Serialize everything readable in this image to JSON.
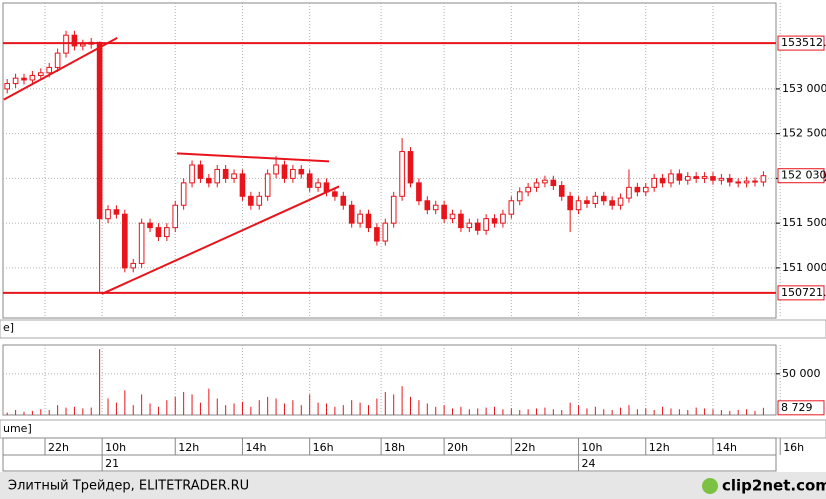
{
  "chart_data": {
    "type": "candlestick",
    "color": "#e8141b",
    "grid": true,
    "xlim": [
      -0.5,
      91.5
    ],
    "ylim": [
      150440,
      153960
    ],
    "yticks": [
      {
        "value": 151000,
        "label": "151 000"
      },
      {
        "value": 151500,
        "label": "151 500"
      },
      {
        "value": 152000,
        "label": "152 000"
      },
      {
        "value": 152500,
        "label": "152 500"
      },
      {
        "value": 153000,
        "label": "153 000"
      }
    ],
    "xticks": [
      {
        "value": 4.5,
        "label": "22h"
      },
      {
        "value": 11.3,
        "label": "10h"
      },
      {
        "value": 20,
        "label": "12h"
      },
      {
        "value": 28,
        "label": "14h"
      },
      {
        "value": 36,
        "label": "16h"
      },
      {
        "value": 44.5,
        "label": "18h"
      },
      {
        "value": 52,
        "label": "20h"
      },
      {
        "value": 60,
        "label": "22h"
      },
      {
        "value": 68,
        "label": "10h"
      },
      {
        "value": 76,
        "label": "12h"
      },
      {
        "value": 84,
        "label": "14h"
      },
      {
        "value": 92,
        "label": "16h"
      }
    ],
    "date_labels": [
      {
        "value": 11.3,
        "label": "21"
      },
      {
        "value": 68,
        "label": "24"
      }
    ],
    "levels": [
      {
        "value": 153512,
        "label": "153512."
      },
      {
        "value": 150721,
        "label": "150721."
      }
    ],
    "last_label": "152 030",
    "panel_label": "e]",
    "trend_lines": [
      [
        [
          -0.4,
          152880
        ],
        [
          13.1,
          153570
        ]
      ],
      [
        [
          20.2,
          152280
        ],
        [
          38.3,
          152190
        ]
      ],
      [
        [
          11.3,
          150710
        ],
        [
          39.5,
          151910
        ]
      ]
    ],
    "candles": [
      [
        153000,
        153110,
        152950,
        153060
      ],
      [
        153060,
        153170,
        153010,
        153120
      ],
      [
        153120,
        153170,
        153050,
        153100
      ],
      [
        153100,
        153200,
        153050,
        153150
      ],
      [
        153150,
        153230,
        153100,
        153180
      ],
      [
        153180,
        153290,
        153130,
        153240
      ],
      [
        153240,
        153450,
        153190,
        153400
      ],
      [
        153400,
        153650,
        153350,
        153600
      ],
      [
        153600,
        153650,
        153430,
        153480
      ],
      [
        153480,
        153550,
        153430,
        153500
      ],
      [
        153500,
        153570,
        153450,
        153520
      ],
      [
        153520,
        153530,
        150721,
        151550
      ],
      [
        151550,
        151700,
        151500,
        151650
      ],
      [
        151650,
        151700,
        151550,
        151600
      ],
      [
        151600,
        151650,
        150950,
        151000
      ],
      [
        151000,
        151100,
        150950,
        151050
      ],
      [
        151050,
        151550,
        151000,
        151500
      ],
      [
        151500,
        151550,
        151400,
        151450
      ],
      [
        151450,
        151500,
        151300,
        151350
      ],
      [
        151350,
        151500,
        151300,
        151450
      ],
      [
        151450,
        151750,
        151400,
        151700
      ],
      [
        151700,
        152000,
        151650,
        151950
      ],
      [
        151950,
        152200,
        151900,
        152150
      ],
      [
        152150,
        152200,
        151950,
        152000
      ],
      [
        152000,
        152050,
        151900,
        151950
      ],
      [
        151950,
        152150,
        151900,
        152100
      ],
      [
        152100,
        152150,
        151950,
        152000
      ],
      [
        152000,
        152100,
        151950,
        152050
      ],
      [
        152050,
        152100,
        151750,
        151800
      ],
      [
        151800,
        151850,
        151650,
        151700
      ],
      [
        151700,
        151850,
        151650,
        151800
      ],
      [
        151800,
        152100,
        151750,
        152050
      ],
      [
        152050,
        152250,
        152000,
        152150
      ],
      [
        152150,
        152200,
        151950,
        152000
      ],
      [
        152000,
        152150,
        151950,
        152100
      ],
      [
        152100,
        152150,
        152000,
        152050
      ],
      [
        152050,
        152100,
        151850,
        151900
      ],
      [
        151900,
        152000,
        151850,
        151950
      ],
      [
        151950,
        152000,
        151800,
        151850
      ],
      [
        151850,
        151900,
        151750,
        151800
      ],
      [
        151800,
        151850,
        151650,
        151700
      ],
      [
        151700,
        151750,
        151450,
        151500
      ],
      [
        151500,
        151650,
        151450,
        151600
      ],
      [
        151600,
        151650,
        151400,
        151450
      ],
      [
        151450,
        151500,
        151250,
        151300
      ],
      [
        151300,
        151550,
        151250,
        151500
      ],
      [
        151500,
        151850,
        151450,
        151800
      ],
      [
        151800,
        152450,
        151750,
        152300
      ],
      [
        152300,
        152350,
        151900,
        151950
      ],
      [
        151950,
        152000,
        151700,
        151750
      ],
      [
        151750,
        151800,
        151600,
        151650
      ],
      [
        151650,
        151750,
        151600,
        151700
      ],
      [
        151700,
        151750,
        151500,
        151550
      ],
      [
        151550,
        151650,
        151500,
        151600
      ],
      [
        151600,
        151650,
        151400,
        151450
      ],
      [
        151450,
        151550,
        151400,
        151500
      ],
      [
        151500,
        151550,
        151370,
        151420
      ],
      [
        151420,
        151600,
        151370,
        151550
      ],
      [
        151550,
        151600,
        151450,
        151500
      ],
      [
        151500,
        151650,
        151450,
        151600
      ],
      [
        151600,
        151800,
        151550,
        151750
      ],
      [
        151750,
        151900,
        151700,
        151850
      ],
      [
        151850,
        151950,
        151800,
        151900
      ],
      [
        151900,
        152000,
        151850,
        151950
      ],
      [
        151950,
        152030,
        151900,
        151980
      ],
      [
        151980,
        152030,
        151870,
        151920
      ],
      [
        151920,
        151970,
        151750,
        151800
      ],
      [
        151800,
        151850,
        151400,
        151650
      ],
      [
        151650,
        151800,
        151600,
        151750
      ],
      [
        151750,
        151800,
        151670,
        151720
      ],
      [
        151720,
        151850,
        151670,
        151800
      ],
      [
        151800,
        151850,
        151700,
        151750
      ],
      [
        151750,
        151800,
        151650,
        151700
      ],
      [
        151700,
        151830,
        151650,
        151780
      ],
      [
        151780,
        152100,
        151730,
        151900
      ],
      [
        151900,
        151950,
        151800,
        151850
      ],
      [
        151850,
        151950,
        151800,
        151900
      ],
      [
        151900,
        152050,
        151850,
        152000
      ],
      [
        152000,
        152050,
        151900,
        151950
      ],
      [
        151950,
        152100,
        151900,
        152050
      ],
      [
        152050,
        152100,
        151930,
        151980
      ],
      [
        151980,
        152070,
        151930,
        152020
      ],
      [
        152020,
        152070,
        151950,
        152000
      ],
      [
        152000,
        152070,
        151950,
        152020
      ],
      [
        152020,
        152070,
        151930,
        151980
      ],
      [
        151980,
        152050,
        151930,
        152000
      ],
      [
        152000,
        152050,
        151910,
        151960
      ],
      [
        151960,
        152000,
        151900,
        151950
      ],
      [
        151950,
        152020,
        151900,
        151970
      ],
      [
        151970,
        152010,
        151910,
        151960
      ],
      [
        151960,
        152080,
        151910,
        152030
      ]
    ],
    "volume": {
      "label": "ume]",
      "ylim": [
        0,
        85000
      ],
      "yticks": [
        {
          "value": 50000,
          "label": "50 000"
        }
      ],
      "last_label": "8 729",
      "values": [
        3000,
        6000,
        4000,
        5000,
        7000,
        6000,
        12000,
        9000,
        10000,
        8000,
        9000,
        80000,
        20000,
        15000,
        30000,
        12000,
        25000,
        14000,
        10000,
        18000,
        22000,
        28000,
        25000,
        15000,
        32000,
        20000,
        12000,
        14000,
        16000,
        10000,
        18000,
        22000,
        20000,
        14000,
        18000,
        12000,
        25000,
        15000,
        14000,
        10000,
        12000,
        18000,
        15000,
        12000,
        20000,
        28000,
        25000,
        35000,
        22000,
        18000,
        14000,
        10000,
        12000,
        8000,
        10000,
        7000,
        8000,
        9000,
        10000,
        7000,
        8000,
        6000,
        7000,
        8000,
        9000,
        7000,
        6000,
        15000,
        12000,
        8000,
        10000,
        7000,
        6000,
        9000,
        12000,
        7000,
        8000,
        6000,
        10000,
        8000,
        7000,
        6000,
        9000,
        8000,
        7000,
        6000,
        5000,
        6000,
        7000,
        5000,
        8729
      ]
    }
  },
  "footer": {
    "text": "Элитный Трейдер, ELITETRADER.RU",
    "logo": "clip2net.com"
  }
}
